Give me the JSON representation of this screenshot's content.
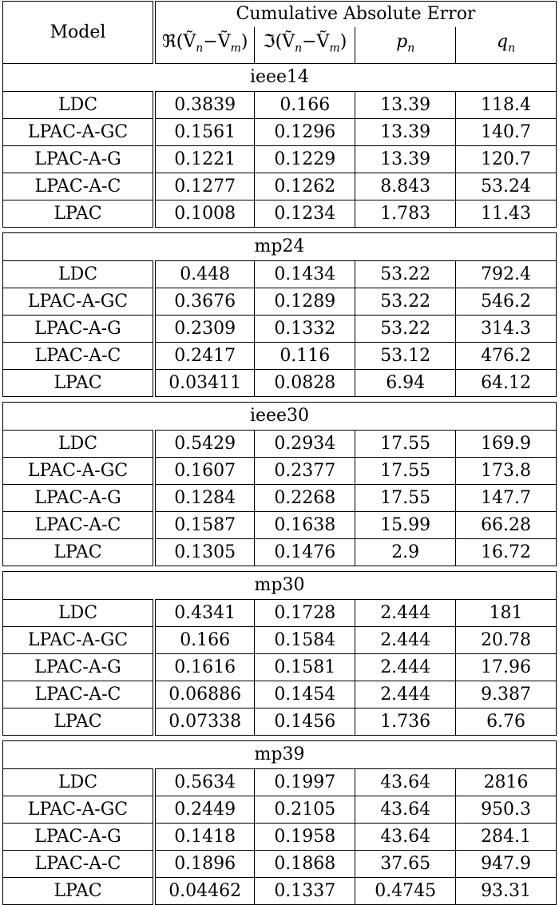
{
  "header": {
    "model": "Model",
    "group": "Cumulative Absolute Error",
    "col_re": "ℜ(Ṽ",
    "col_re_sub_n": "n",
    "col_re_mid": "−Ṽ",
    "col_re_sub_m": "m",
    "col_re_end": ")",
    "col_im": "ℑ(Ṽ",
    "col_im_sub_n": "n",
    "col_im_mid": "−Ṽ",
    "col_im_sub_m": "m",
    "col_im_end": ")",
    "col_p": "p",
    "col_p_sub": "n",
    "col_q": "q",
    "col_q_sub": "n"
  },
  "sections": [
    {
      "name": "ieee14",
      "rows": [
        [
          "LDC",
          "0.3839",
          "0.166",
          "13.39",
          "118.4"
        ],
        [
          "LPAC-A-GC",
          "0.1561",
          "0.1296",
          "13.39",
          "140.7"
        ],
        [
          "LPAC-A-G",
          "0.1221",
          "0.1229",
          "13.39",
          "120.7"
        ],
        [
          "LPAC-A-C",
          "0.1277",
          "0.1262",
          "8.843",
          "53.24"
        ],
        [
          "LPAC",
          "0.1008",
          "0.1234",
          "1.783",
          "11.43"
        ]
      ]
    },
    {
      "name": "mp24",
      "rows": [
        [
          "LDC",
          "0.448",
          "0.1434",
          "53.22",
          "792.4"
        ],
        [
          "LPAC-A-GC",
          "0.3676",
          "0.1289",
          "53.22",
          "546.2"
        ],
        [
          "LPAC-A-G",
          "0.2309",
          "0.1332",
          "53.22",
          "314.3"
        ],
        [
          "LPAC-A-C",
          "0.2417",
          "0.116",
          "53.12",
          "476.2"
        ],
        [
          "LPAC",
          "0.03411",
          "0.0828",
          "6.94",
          "64.12"
        ]
      ]
    },
    {
      "name": "ieee30",
      "rows": [
        [
          "LDC",
          "0.5429",
          "0.2934",
          "17.55",
          "169.9"
        ],
        [
          "LPAC-A-GC",
          "0.1607",
          "0.2377",
          "17.55",
          "173.8"
        ],
        [
          "LPAC-A-G",
          "0.1284",
          "0.2268",
          "17.55",
          "147.7"
        ],
        [
          "LPAC-A-C",
          "0.1587",
          "0.1638",
          "15.99",
          "66.28"
        ],
        [
          "LPAC",
          "0.1305",
          "0.1476",
          "2.9",
          "16.72"
        ]
      ]
    },
    {
      "name": "mp30",
      "rows": [
        [
          "LDC",
          "0.4341",
          "0.1728",
          "2.444",
          "181"
        ],
        [
          "LPAC-A-GC",
          "0.166",
          "0.1584",
          "2.444",
          "20.78"
        ],
        [
          "LPAC-A-G",
          "0.1616",
          "0.1581",
          "2.444",
          "17.96"
        ],
        [
          "LPAC-A-C",
          "0.06886",
          "0.1454",
          "2.444",
          "9.387"
        ],
        [
          "LPAC",
          "0.07338",
          "0.1456",
          "1.736",
          "6.76"
        ]
      ]
    },
    {
      "name": "mp39",
      "rows": [
        [
          "LDC",
          "0.5634",
          "0.1997",
          "43.64",
          "2816"
        ],
        [
          "LPAC-A-GC",
          "0.2449",
          "0.2105",
          "43.64",
          "950.3"
        ],
        [
          "LPAC-A-G",
          "0.1418",
          "0.1958",
          "43.64",
          "284.1"
        ],
        [
          "LPAC-A-C",
          "0.1896",
          "0.1868",
          "37.65",
          "947.9"
        ],
        [
          "LPAC",
          "0.04462",
          "0.1337",
          "0.4745",
          "93.31"
        ]
      ]
    }
  ]
}
